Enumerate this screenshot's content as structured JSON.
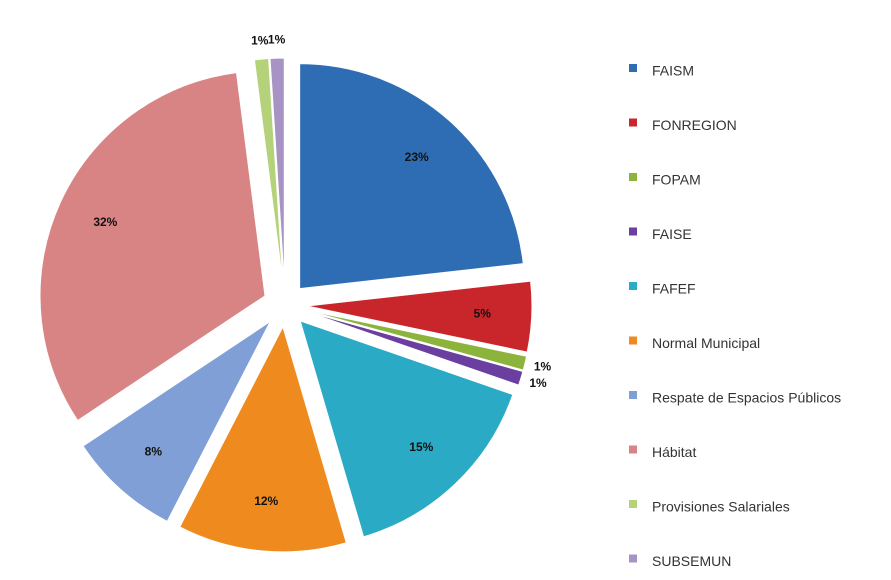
{
  "chart_data": {
    "type": "pie",
    "categories": [
      "FAISM",
      "FONREGION",
      "FOPAM",
      "FAISE",
      "FAFEF",
      "Normal Municipal",
      "Respate de Espacios Públicos",
      "Hábitat",
      "Provisiones Salariales",
      "SUBSEMUN"
    ],
    "values": [
      23,
      5,
      1,
      1,
      15,
      12,
      8,
      32,
      1,
      1
    ],
    "value_labels": [
      "23%",
      "5%",
      "1%",
      "1%",
      "15%",
      "12%",
      "8%",
      "32%",
      "1%",
      "1%"
    ],
    "colors": [
      "#2e6db4",
      "#c9262c",
      "#8cb43c",
      "#6a3fa0",
      "#2aaac4",
      "#ee8a1e",
      "#7f9fd6",
      "#d98484",
      "#b4d27a",
      "#a894c4",
      "#78c4d4"
    ],
    "legend": "right"
  }
}
